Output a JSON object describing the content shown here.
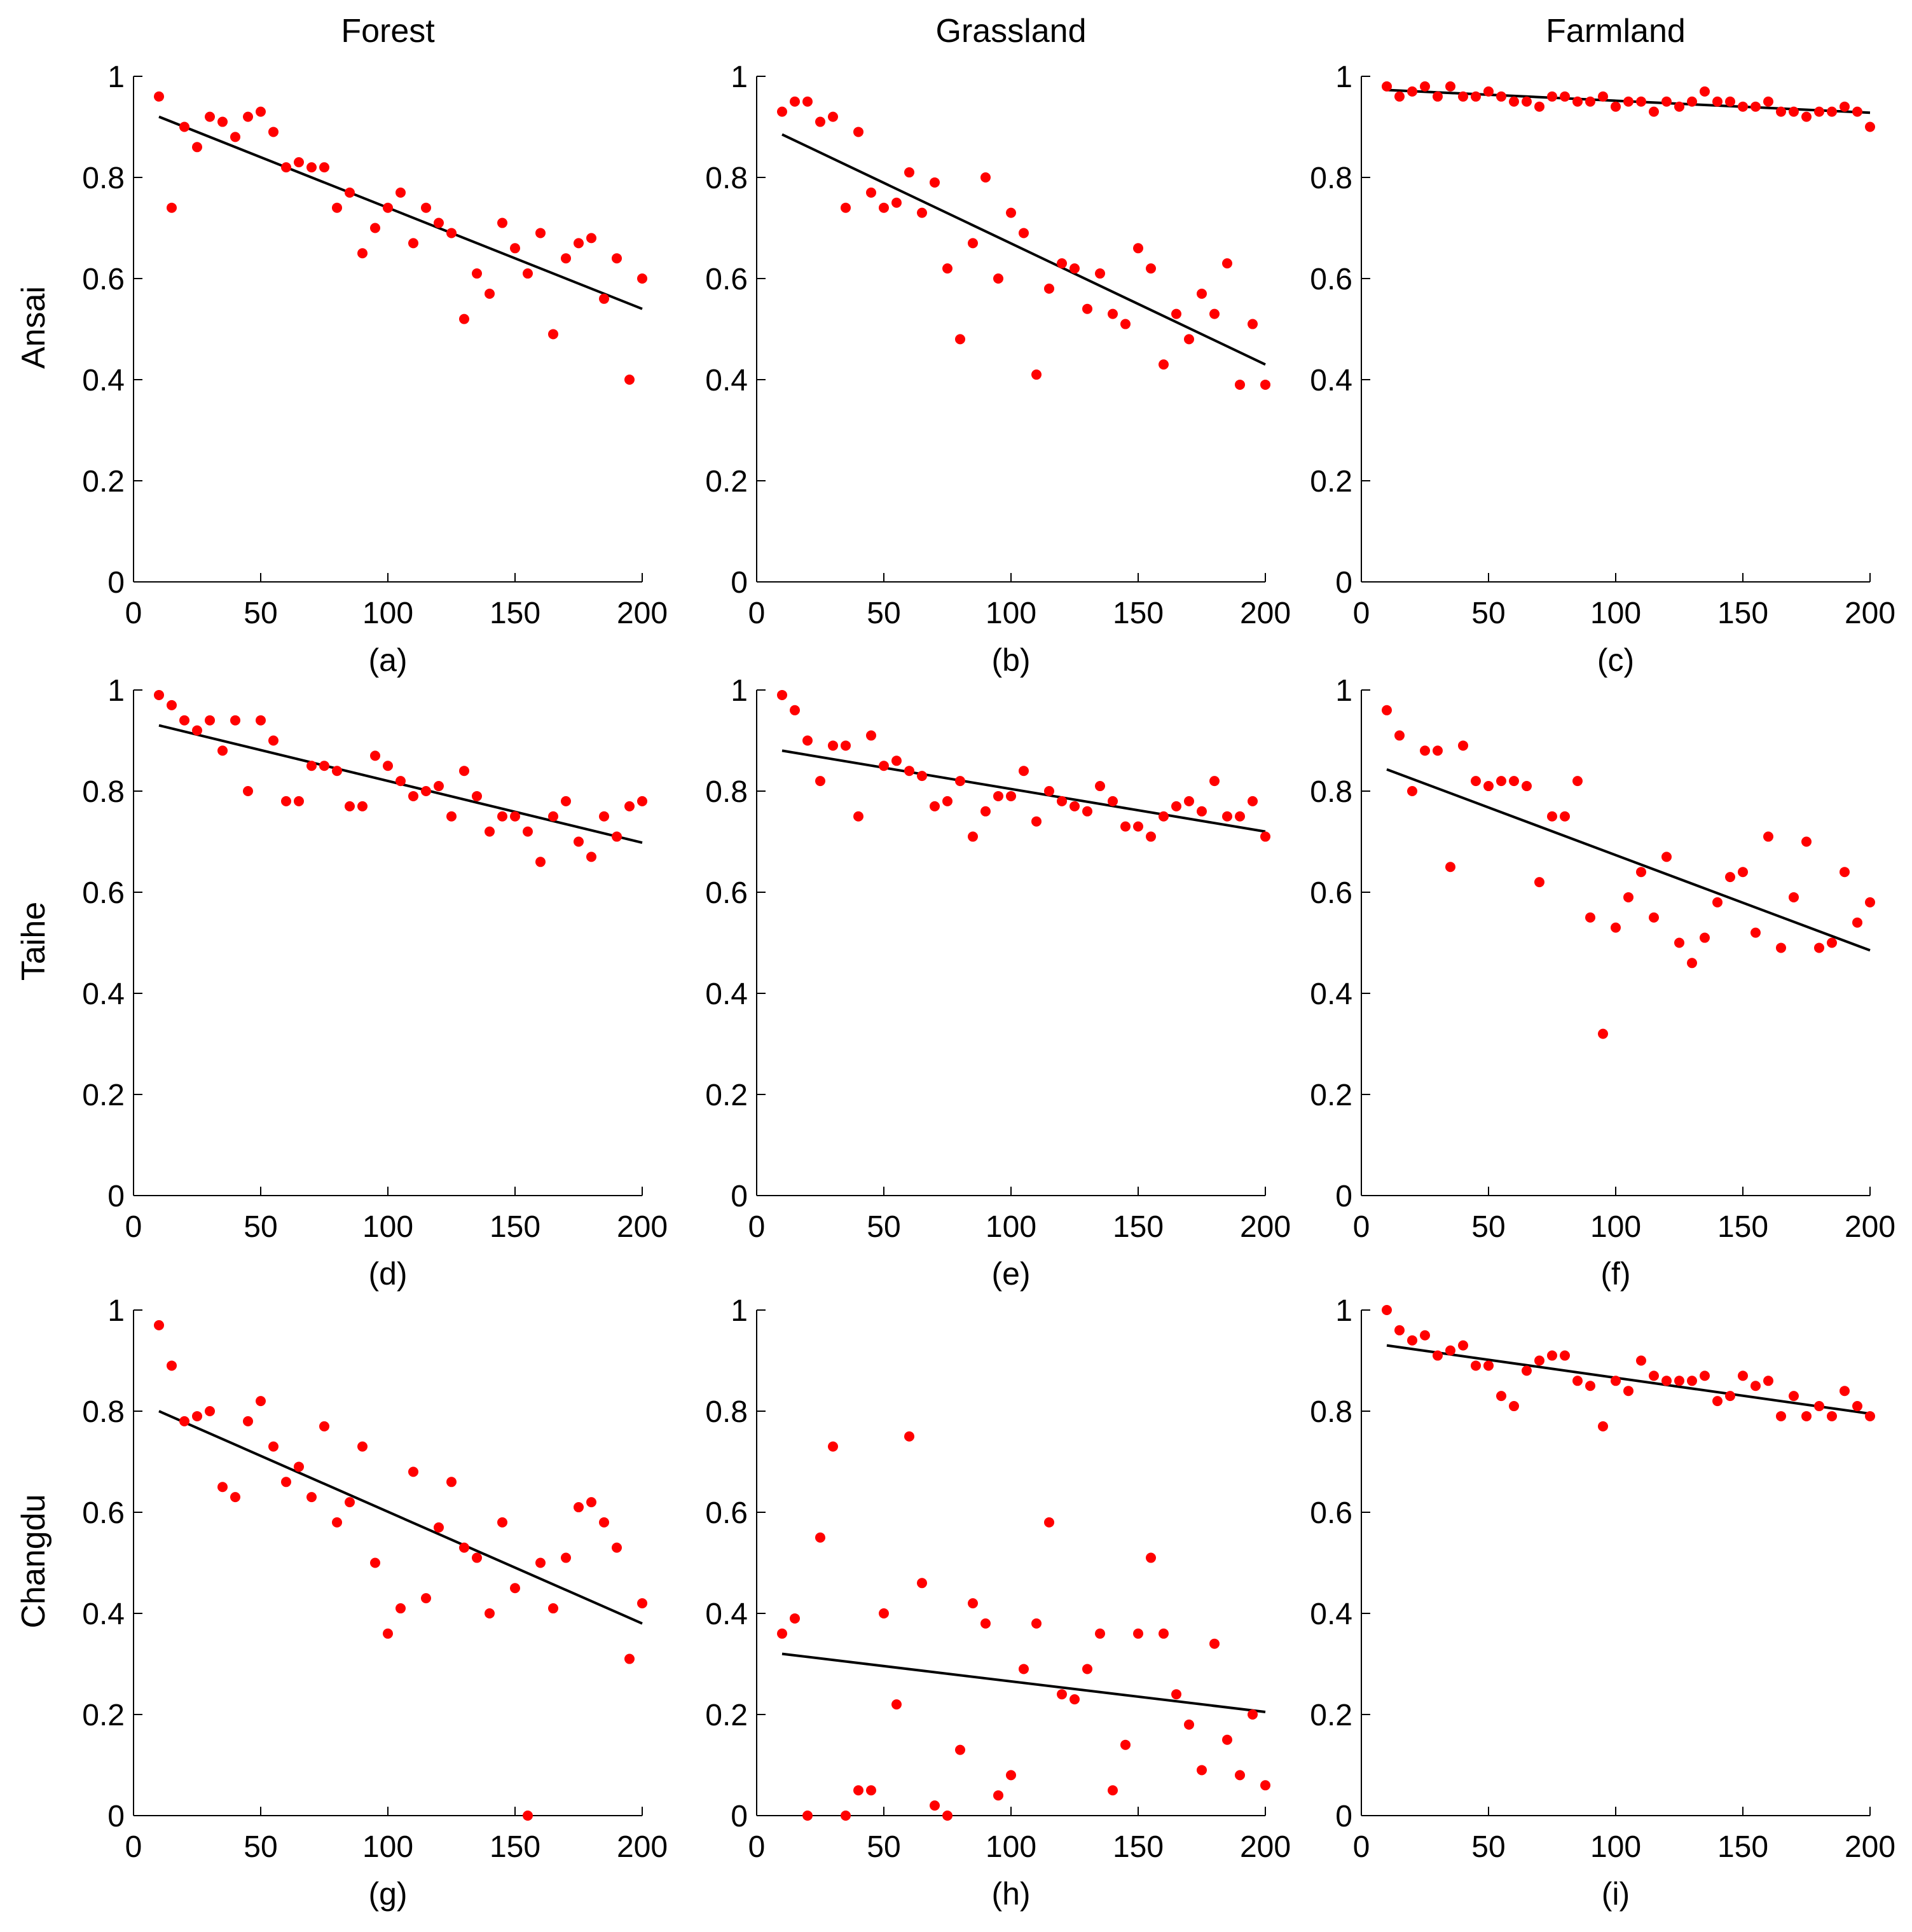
{
  "figure": {
    "col_titles": [
      "Forest",
      "Grassland",
      "Farmland"
    ],
    "row_labels": [
      "Ansai",
      "Taihe",
      "Changdu"
    ],
    "colors": {
      "points": "#ff0000",
      "fit_line": "#000000",
      "axes": "#000000"
    }
  },
  "chart_data": [
    {
      "id": "a",
      "panel_label": "(a)",
      "type": "scatter",
      "row": "Ansai",
      "column": "Forest",
      "xlim": [
        0,
        200
      ],
      "ylim": [
        0,
        1
      ],
      "xticks": [
        "0",
        "50",
        "100",
        "150",
        "200"
      ],
      "yticks": [
        "0",
        "0.2",
        "0.4",
        "0.6",
        "0.8",
        "1"
      ],
      "x": [
        10,
        15,
        20,
        25,
        30,
        35,
        40,
        45,
        50,
        55,
        60,
        65,
        70,
        75,
        80,
        85,
        90,
        95,
        100,
        105,
        110,
        115,
        120,
        125,
        130,
        135,
        140,
        145,
        150,
        155,
        160,
        165,
        170,
        175,
        180,
        185,
        190,
        195,
        200
      ],
      "y": [
        0.96,
        0.74,
        0.9,
        0.86,
        0.92,
        0.91,
        0.88,
        0.92,
        0.93,
        0.89,
        0.82,
        0.83,
        0.82,
        0.82,
        0.74,
        0.77,
        0.65,
        0.7,
        0.74,
        0.77,
        0.67,
        0.74,
        0.71,
        0.69,
        0.52,
        0.61,
        0.57,
        0.71,
        0.66,
        0.61,
        0.69,
        0.49,
        0.64,
        0.67,
        0.68,
        0.56,
        0.64,
        0.4,
        0.6
      ],
      "fit": {
        "x": [
          10,
          200
        ],
        "y": [
          0.92,
          0.54
        ]
      }
    },
    {
      "id": "b",
      "panel_label": "(b)",
      "type": "scatter",
      "row": "Ansai",
      "column": "Grassland",
      "xlim": [
        0,
        200
      ],
      "ylim": [
        0,
        1
      ],
      "xticks": [
        "0",
        "50",
        "100",
        "150",
        "200"
      ],
      "yticks": [
        "0",
        "0.2",
        "0.4",
        "0.6",
        "0.8",
        "1"
      ],
      "x": [
        10,
        15,
        20,
        25,
        30,
        35,
        40,
        45,
        50,
        55,
        60,
        65,
        70,
        75,
        80,
        85,
        90,
        95,
        100,
        105,
        110,
        115,
        120,
        125,
        130,
        135,
        140,
        145,
        150,
        155,
        160,
        165,
        170,
        175,
        180,
        185,
        190,
        195,
        200
      ],
      "y": [
        0.93,
        0.95,
        0.95,
        0.91,
        0.92,
        0.74,
        0.89,
        0.77,
        0.74,
        0.75,
        0.81,
        0.73,
        0.79,
        0.62,
        0.48,
        0.67,
        0.8,
        0.6,
        0.73,
        0.69,
        0.41,
        0.58,
        0.63,
        0.62,
        0.54,
        0.61,
        0.53,
        0.51,
        0.66,
        0.62,
        0.43,
        0.53,
        0.48,
        0.57,
        0.53,
        0.63,
        0.39,
        0.51,
        0.39
      ],
      "fit": {
        "x": [
          10,
          200
        ],
        "y": [
          0.885,
          0.43
        ]
      }
    },
    {
      "id": "c",
      "panel_label": "(c)",
      "type": "scatter",
      "row": "Ansai",
      "column": "Farmland",
      "xlim": [
        0,
        200
      ],
      "ylim": [
        0,
        1
      ],
      "xticks": [
        "0",
        "50",
        "100",
        "150",
        "200"
      ],
      "yticks": [
        "0",
        "0.2",
        "0.4",
        "0.6",
        "0.8",
        "1"
      ],
      "x": [
        10,
        15,
        20,
        25,
        30,
        35,
        40,
        45,
        50,
        55,
        60,
        65,
        70,
        75,
        80,
        85,
        90,
        95,
        100,
        105,
        110,
        115,
        120,
        125,
        130,
        135,
        140,
        145,
        150,
        155,
        160,
        165,
        170,
        175,
        180,
        185,
        190,
        195,
        200
      ],
      "y": [
        0.98,
        0.96,
        0.97,
        0.98,
        0.96,
        0.98,
        0.96,
        0.96,
        0.97,
        0.96,
        0.95,
        0.95,
        0.94,
        0.96,
        0.96,
        0.95,
        0.95,
        0.96,
        0.94,
        0.95,
        0.95,
        0.93,
        0.95,
        0.94,
        0.95,
        0.97,
        0.95,
        0.95,
        0.94,
        0.94,
        0.95,
        0.93,
        0.93,
        0.92,
        0.93,
        0.93,
        0.94,
        0.93,
        0.9
      ],
      "fit": {
        "x": [
          10,
          200
        ],
        "y": [
          0.973,
          0.928
        ]
      }
    },
    {
      "id": "d",
      "panel_label": "(d)",
      "type": "scatter",
      "row": "Taihe",
      "column": "Forest",
      "xlim": [
        0,
        200
      ],
      "ylim": [
        0,
        1
      ],
      "xticks": [
        "0",
        "50",
        "100",
        "150",
        "200"
      ],
      "yticks": [
        "0",
        "0.2",
        "0.4",
        "0.6",
        "0.8",
        "1"
      ],
      "x": [
        10,
        15,
        20,
        25,
        30,
        35,
        40,
        45,
        50,
        55,
        60,
        65,
        70,
        75,
        80,
        85,
        90,
        95,
        100,
        105,
        110,
        115,
        120,
        125,
        130,
        135,
        140,
        145,
        150,
        155,
        160,
        165,
        170,
        175,
        180,
        185,
        190,
        195,
        200
      ],
      "y": [
        0.99,
        0.97,
        0.94,
        0.92,
        0.94,
        0.88,
        0.94,
        0.8,
        0.94,
        0.9,
        0.78,
        0.78,
        0.85,
        0.85,
        0.84,
        0.77,
        0.77,
        0.87,
        0.85,
        0.82,
        0.79,
        0.8,
        0.81,
        0.75,
        0.84,
        0.79,
        0.72,
        0.75,
        0.75,
        0.72,
        0.66,
        0.75,
        0.78,
        0.7,
        0.67,
        0.75,
        0.71,
        0.77,
        0.78
      ],
      "fit": {
        "x": [
          10,
          200
        ],
        "y": [
          0.93,
          0.698
        ]
      }
    },
    {
      "id": "e",
      "panel_label": "(e)",
      "type": "scatter",
      "row": "Taihe",
      "column": "Grassland",
      "xlim": [
        0,
        200
      ],
      "ylim": [
        0,
        1
      ],
      "xticks": [
        "0",
        "50",
        "100",
        "150",
        "200"
      ],
      "yticks": [
        "0",
        "0.2",
        "0.4",
        "0.6",
        "0.8",
        "1"
      ],
      "x": [
        10,
        15,
        20,
        25,
        30,
        35,
        40,
        45,
        50,
        55,
        60,
        65,
        70,
        75,
        80,
        85,
        90,
        95,
        100,
        105,
        110,
        115,
        120,
        125,
        130,
        135,
        140,
        145,
        150,
        155,
        160,
        165,
        170,
        175,
        180,
        185,
        190,
        195,
        200
      ],
      "y": [
        0.99,
        0.96,
        0.9,
        0.82,
        0.89,
        0.89,
        0.75,
        0.91,
        0.85,
        0.86,
        0.84,
        0.83,
        0.77,
        0.78,
        0.82,
        0.71,
        0.76,
        0.79,
        0.79,
        0.84,
        0.74,
        0.8,
        0.78,
        0.77,
        0.76,
        0.81,
        0.78,
        0.73,
        0.73,
        0.71,
        0.75,
        0.77,
        0.78,
        0.76,
        0.82,
        0.75,
        0.75,
        0.78,
        0.71
      ],
      "fit": {
        "x": [
          10,
          200
        ],
        "y": [
          0.88,
          0.72
        ]
      }
    },
    {
      "id": "f",
      "panel_label": "(f)",
      "type": "scatter",
      "row": "Taihe",
      "column": "Farmland",
      "xlim": [
        0,
        200
      ],
      "ylim": [
        0,
        1
      ],
      "xticks": [
        "0",
        "50",
        "100",
        "150",
        "200"
      ],
      "yticks": [
        "0",
        "0.2",
        "0.4",
        "0.6",
        "0.8",
        "1"
      ],
      "x": [
        10,
        15,
        20,
        25,
        30,
        35,
        40,
        45,
        50,
        55,
        60,
        65,
        70,
        75,
        80,
        85,
        90,
        95,
        100,
        105,
        110,
        115,
        120,
        125,
        130,
        135,
        140,
        145,
        150,
        155,
        160,
        165,
        170,
        175,
        180,
        185,
        190,
        195,
        200
      ],
      "y": [
        0.96,
        0.91,
        0.8,
        0.88,
        0.88,
        0.65,
        0.89,
        0.82,
        0.81,
        0.82,
        0.82,
        0.81,
        0.62,
        0.75,
        0.75,
        0.82,
        0.55,
        0.32,
        0.53,
        0.59,
        0.64,
        0.55,
        0.67,
        0.5,
        0.46,
        0.51,
        0.58,
        0.63,
        0.64,
        0.52,
        0.71,
        0.49,
        0.59,
        0.7,
        0.49,
        0.5,
        0.64,
        0.54,
        0.58
      ],
      "fit": {
        "x": [
          10,
          200
        ],
        "y": [
          0.843,
          0.485
        ]
      }
    },
    {
      "id": "g",
      "panel_label": "(g)",
      "type": "scatter",
      "row": "Changdu",
      "column": "Forest",
      "xlim": [
        0,
        200
      ],
      "ylim": [
        0,
        1
      ],
      "xticks": [
        "0",
        "50",
        "100",
        "150",
        "200"
      ],
      "yticks": [
        "0",
        "0.2",
        "0.4",
        "0.6",
        "0.8",
        "1"
      ],
      "x": [
        10,
        15,
        20,
        25,
        30,
        35,
        40,
        45,
        50,
        55,
        60,
        65,
        70,
        75,
        80,
        85,
        90,
        95,
        100,
        105,
        110,
        115,
        120,
        125,
        130,
        135,
        140,
        145,
        150,
        155,
        160,
        165,
        170,
        175,
        180,
        185,
        190,
        195,
        200
      ],
      "y": [
        0.97,
        0.89,
        0.78,
        0.79,
        0.8,
        0.65,
        0.63,
        0.78,
        0.82,
        0.73,
        0.66,
        0.69,
        0.63,
        0.77,
        0.58,
        0.62,
        0.73,
        0.5,
        0.36,
        0.41,
        0.68,
        0.43,
        0.57,
        0.66,
        0.53,
        0.51,
        0.4,
        0.58,
        0.45,
        0.0,
        0.5,
        0.41,
        0.51,
        0.61,
        0.62,
        0.58,
        0.53,
        0.31,
        0.42
      ],
      "fit": {
        "x": [
          10,
          200
        ],
        "y": [
          0.8,
          0.38
        ]
      }
    },
    {
      "id": "h",
      "panel_label": "(h)",
      "type": "scatter",
      "row": "Changdu",
      "column": "Grassland",
      "xlim": [
        0,
        200
      ],
      "ylim": [
        0,
        1
      ],
      "xticks": [
        "0",
        "50",
        "100",
        "150",
        "200"
      ],
      "yticks": [
        "0",
        "0.2",
        "0.4",
        "0.6",
        "0.8",
        "1"
      ],
      "x": [
        10,
        15,
        20,
        25,
        30,
        35,
        40,
        45,
        50,
        55,
        60,
        65,
        70,
        75,
        80,
        85,
        90,
        95,
        100,
        105,
        110,
        115,
        120,
        125,
        130,
        135,
        140,
        145,
        150,
        155,
        160,
        165,
        170,
        175,
        180,
        185,
        190,
        195,
        200
      ],
      "y": [
        0.36,
        0.39,
        0.0,
        0.55,
        0.73,
        0.0,
        0.05,
        0.05,
        0.4,
        0.22,
        0.75,
        0.46,
        0.02,
        0.0,
        0.13,
        0.42,
        0.38,
        0.04,
        0.08,
        0.29,
        0.38,
        0.58,
        0.24,
        0.23,
        0.29,
        0.36,
        0.05,
        0.14,
        0.36,
        0.51,
        0.36,
        0.24,
        0.18,
        0.09,
        0.34,
        0.15,
        0.08,
        0.2,
        0.06
      ],
      "fit": {
        "x": [
          10,
          200
        ],
        "y": [
          0.32,
          0.205
        ]
      }
    },
    {
      "id": "i",
      "panel_label": "(i)",
      "type": "scatter",
      "row": "Changdu",
      "column": "Farmland",
      "xlim": [
        0,
        200
      ],
      "ylim": [
        0,
        1
      ],
      "xticks": [
        "0",
        "50",
        "100",
        "150",
        "200"
      ],
      "yticks": [
        "0",
        "0.2",
        "0.4",
        "0.6",
        "0.8",
        "1"
      ],
      "x": [
        10,
        15,
        20,
        25,
        30,
        35,
        40,
        45,
        50,
        55,
        60,
        65,
        70,
        75,
        80,
        85,
        90,
        95,
        100,
        105,
        110,
        115,
        120,
        125,
        130,
        135,
        140,
        145,
        150,
        155,
        160,
        165,
        170,
        175,
        180,
        185,
        190,
        195,
        200
      ],
      "y": [
        1.0,
        0.96,
        0.94,
        0.95,
        0.91,
        0.92,
        0.93,
        0.89,
        0.89,
        0.83,
        0.81,
        0.88,
        0.9,
        0.91,
        0.91,
        0.86,
        0.85,
        0.77,
        0.86,
        0.84,
        0.9,
        0.87,
        0.86,
        0.86,
        0.86,
        0.87,
        0.82,
        0.83,
        0.87,
        0.85,
        0.86,
        0.79,
        0.83,
        0.79,
        0.81,
        0.79,
        0.84,
        0.81,
        0.79
      ],
      "fit": {
        "x": [
          10,
          200
        ],
        "y": [
          0.93,
          0.795
        ]
      }
    }
  ]
}
